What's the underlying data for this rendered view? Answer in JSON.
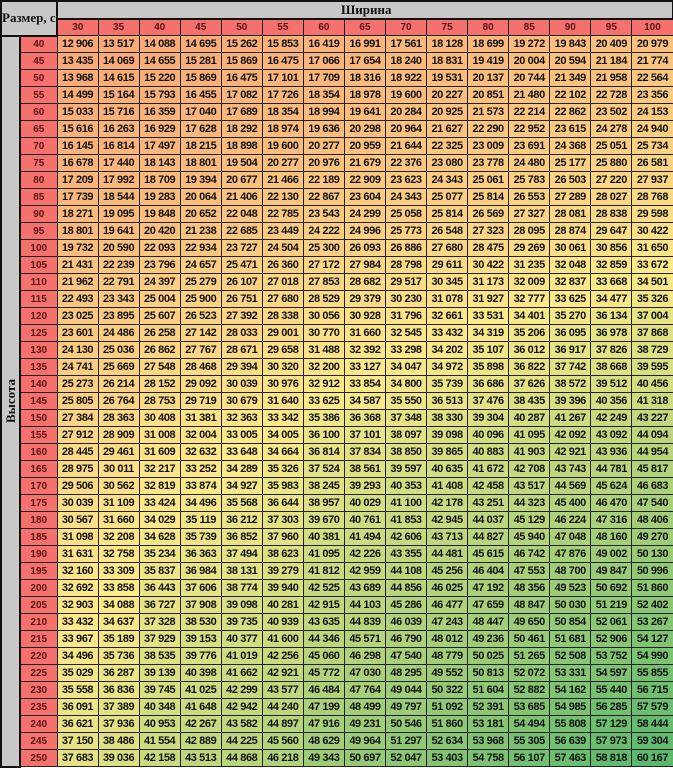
{
  "header": {
    "size_label": "Размер, см",
    "width_label": "Ширина",
    "height_label": "Высота"
  },
  "colors": {
    "header_red": "#f4716e",
    "header_grey": "#c8c8c8",
    "scale_low": "#f9a878",
    "scale_mid": "#fce98a",
    "scale_high": "#5cb86c"
  },
  "columns": [
    "30",
    "35",
    "40",
    "45",
    "50",
    "55",
    "60",
    "65",
    "70",
    "75",
    "80",
    "85",
    "90",
    "95",
    "100"
  ],
  "rows": [
    {
      "label": "40",
      "values": [
        "12 906",
        "13 517",
        "14 088",
        "14 695",
        "15 262",
        "15 853",
        "16 419",
        "16 991",
        "17 561",
        "18 128",
        "18 699",
        "19 272",
        "19 843",
        "20 409",
        "20 979"
      ]
    },
    {
      "label": "45",
      "values": [
        "13 435",
        "14 069",
        "14 655",
        "15 281",
        "15 869",
        "16 475",
        "17 066",
        "17 654",
        "18 240",
        "18 831",
        "19 419",
        "20 004",
        "20 594",
        "21 184",
        "21 774"
      ]
    },
    {
      "label": "50",
      "values": [
        "13 968",
        "14 615",
        "15 220",
        "15 869",
        "16 475",
        "17 101",
        "17 709",
        "18 316",
        "18 922",
        "19 531",
        "20 137",
        "20 744",
        "21 349",
        "21 958",
        "22 564"
      ]
    },
    {
      "label": "55",
      "values": [
        "14 499",
        "15 164",
        "15 793",
        "16 455",
        "17 082",
        "17 726",
        "18 354",
        "18 978",
        "19 600",
        "20 227",
        "20 851",
        "21 480",
        "22 102",
        "22 728",
        "23 356"
      ]
    },
    {
      "label": "60",
      "values": [
        "15 033",
        "15 716",
        "16 359",
        "17 040",
        "17 689",
        "18 354",
        "18 994",
        "19 641",
        "20 284",
        "20 925",
        "21 573",
        "22 214",
        "22 862",
        "23 502",
        "24 153"
      ]
    },
    {
      "label": "65",
      "values": [
        "15 616",
        "16 263",
        "16 929",
        "17 628",
        "18 292",
        "18 974",
        "19 636",
        "20 298",
        "20 964",
        "21 627",
        "22 290",
        "22 952",
        "23 615",
        "24 278",
        "24 940"
      ]
    },
    {
      "label": "70",
      "values": [
        "16 145",
        "16 814",
        "17 497",
        "18 215",
        "18 898",
        "19 600",
        "20 277",
        "20 959",
        "21 644",
        "22 325",
        "23 009",
        "23 691",
        "24 368",
        "25 051",
        "25 734"
      ]
    },
    {
      "label": "75",
      "values": [
        "16 678",
        "17 440",
        "18 143",
        "18 801",
        "19 504",
        "20 277",
        "20 976",
        "21 679",
        "22 376",
        "23 080",
        "23 778",
        "24 480",
        "25 177",
        "25 880",
        "26 581"
      ]
    },
    {
      "label": "80",
      "values": [
        "17 209",
        "17 992",
        "18 709",
        "19 394",
        "20 677",
        "21 466",
        "22 189",
        "22 909",
        "23 623",
        "24 343",
        "25 061",
        "25 783",
        "26 503",
        "27 220",
        "27 937"
      ]
    },
    {
      "label": "85",
      "values": [
        "17 739",
        "18 544",
        "19 283",
        "20 064",
        "21 406",
        "22 130",
        "22 867",
        "23 604",
        "24 343",
        "25 077",
        "25 814",
        "26 553",
        "27 289",
        "28 027",
        "28 768"
      ]
    },
    {
      "label": "90",
      "values": [
        "18 271",
        "19 095",
        "19 848",
        "20 652",
        "22 048",
        "22 785",
        "23 543",
        "24 299",
        "25 058",
        "25 814",
        "26 569",
        "27 327",
        "28 081",
        "28 838",
        "29 598"
      ]
    },
    {
      "label": "95",
      "values": [
        "18 801",
        "19 641",
        "20 420",
        "21 238",
        "22 685",
        "23 449",
        "24 222",
        "24 996",
        "25 773",
        "26 548",
        "27 323",
        "28 095",
        "28 874",
        "29 647",
        "30 422"
      ]
    },
    {
      "label": "100",
      "values": [
        "19 732",
        "20 590",
        "22 093",
        "22 934",
        "23 727",
        "24 504",
        "25 300",
        "26 093",
        "26 886",
        "27 680",
        "28 475",
        "29 269",
        "30 061",
        "30 856",
        "31 650"
      ]
    },
    {
      "label": "105",
      "values": [
        "21 431",
        "22 239",
        "23 796",
        "24 657",
        "25 471",
        "26 360",
        "27 172",
        "27 984",
        "28 798",
        "29 611",
        "30 422",
        "31 235",
        "32 048",
        "32 859",
        "33 672"
      ]
    },
    {
      "label": "110",
      "values": [
        "21 962",
        "22 791",
        "24 397",
        "25 279",
        "26 107",
        "27 018",
        "27 853",
        "28 682",
        "29 517",
        "30 345",
        "31 173",
        "32 009",
        "32 837",
        "33 668",
        "34 501"
      ]
    },
    {
      "label": "115",
      "values": [
        "22 493",
        "23 343",
        "25 004",
        "25 900",
        "26 751",
        "27 680",
        "28 529",
        "29 379",
        "30 230",
        "31 078",
        "31 927",
        "32 777",
        "33 625",
        "34 477",
        "35 326"
      ]
    },
    {
      "label": "120",
      "values": [
        "23 025",
        "23 895",
        "25 607",
        "26 523",
        "27 392",
        "28 338",
        "30 056",
        "30 928",
        "31 796",
        "32 661",
        "33 531",
        "34 401",
        "35 270",
        "36 134",
        "37 004"
      ]
    },
    {
      "label": "125",
      "values": [
        "23 601",
        "24 486",
        "26 258",
        "27 142",
        "28 033",
        "29 001",
        "30 770",
        "31 660",
        "32 545",
        "33 432",
        "34 319",
        "35 206",
        "36 095",
        "36 978",
        "37 868"
      ]
    },
    {
      "label": "130",
      "values": [
        "24 130",
        "25 036",
        "26 862",
        "27 767",
        "28 671",
        "29 658",
        "31 488",
        "32 392",
        "33 298",
        "34 202",
        "35 107",
        "36 012",
        "36 917",
        "37 826",
        "38 729"
      ]
    },
    {
      "label": "135",
      "values": [
        "24 741",
        "25 669",
        "27 548",
        "28 468",
        "29 394",
        "30 320",
        "32 200",
        "33 127",
        "34 047",
        "34 972",
        "35 898",
        "36 822",
        "37 742",
        "38 668",
        "39 595"
      ]
    },
    {
      "label": "140",
      "values": [
        "25 273",
        "26 214",
        "28 152",
        "29 092",
        "30 039",
        "30 976",
        "32 912",
        "33 854",
        "34 800",
        "35 739",
        "36 686",
        "37 626",
        "38 572",
        "39 512",
        "40 456"
      ]
    },
    {
      "label": "145",
      "values": [
        "25 805",
        "26 764",
        "28 753",
        "29 719",
        "30 679",
        "31 640",
        "33 625",
        "34 587",
        "35 550",
        "36 513",
        "37 476",
        "38 435",
        "39 396",
        "40 356",
        "41 318"
      ]
    },
    {
      "label": "150",
      "values": [
        "27 384",
        "28 363",
        "30 408",
        "31 381",
        "32 363",
        "33 342",
        "35 386",
        "36 368",
        "37 348",
        "38 330",
        "39 304",
        "40 287",
        "41 267",
        "42 249",
        "43 227"
      ]
    },
    {
      "label": "155",
      "values": [
        "27 912",
        "28 909",
        "31 008",
        "32 004",
        "33 005",
        "34 005",
        "36 100",
        "37 101",
        "38 097",
        "39 098",
        "40 096",
        "41 095",
        "42 092",
        "43 092",
        "44 094"
      ]
    },
    {
      "label": "160",
      "values": [
        "28 445",
        "29 461",
        "31 609",
        "32 632",
        "33 648",
        "34 664",
        "36 814",
        "37 834",
        "38 850",
        "39 865",
        "40 883",
        "41 903",
        "42 921",
        "43 936",
        "44 954"
      ]
    },
    {
      "label": "165",
      "values": [
        "28 975",
        "30 011",
        "32 217",
        "33 252",
        "34 289",
        "35 326",
        "37 524",
        "38 561",
        "39 597",
        "40 635",
        "41 672",
        "42 708",
        "43 743",
        "44 781",
        "45 817"
      ]
    },
    {
      "label": "170",
      "values": [
        "29 506",
        "30 562",
        "32 819",
        "33 874",
        "34 927",
        "35 983",
        "38 245",
        "39 293",
        "40 353",
        "41 408",
        "42 458",
        "43 517",
        "44 569",
        "45 624",
        "46 683"
      ]
    },
    {
      "label": "175",
      "values": [
        "30 039",
        "31 109",
        "33 424",
        "34 496",
        "35 568",
        "36 644",
        "38 957",
        "40 029",
        "41 100",
        "42 178",
        "43 251",
        "44 323",
        "45 400",
        "46 470",
        "47 540"
      ]
    },
    {
      "label": "180",
      "values": [
        "30 567",
        "31 660",
        "34 029",
        "35 119",
        "36 212",
        "37 303",
        "39 670",
        "40 761",
        "41 853",
        "42 945",
        "44 037",
        "45 129",
        "46 224",
        "47 316",
        "48 406"
      ]
    },
    {
      "label": "185",
      "values": [
        "31 098",
        "32 208",
        "34 628",
        "35 739",
        "36 852",
        "37 960",
        "40 381",
        "41 494",
        "42 606",
        "43 713",
        "44 827",
        "45 940",
        "47 048",
        "48 160",
        "49 270"
      ]
    },
    {
      "label": "190",
      "values": [
        "31 631",
        "32 758",
        "35 234",
        "36 363",
        "37 494",
        "38 623",
        "41 095",
        "42 226",
        "43 355",
        "44 481",
        "45 615",
        "46 742",
        "47 876",
        "49 002",
        "50 130"
      ]
    },
    {
      "label": "195",
      "values": [
        "32 160",
        "33 309",
        "35 837",
        "36 984",
        "38 131",
        "39 279",
        "41 812",
        "42 959",
        "44 108",
        "45 256",
        "46 404",
        "47 553",
        "48 700",
        "49 847",
        "50 996"
      ]
    },
    {
      "label": "200",
      "values": [
        "32 692",
        "33 858",
        "36 443",
        "37 606",
        "38 774",
        "39 940",
        "42 525",
        "43 689",
        "44 856",
        "46 025",
        "47 192",
        "48 356",
        "49 523",
        "50 692",
        "51 860"
      ]
    },
    {
      "label": "205",
      "values": [
        "32 903",
        "34 088",
        "36 727",
        "37 908",
        "39 098",
        "40 281",
        "42 915",
        "44 103",
        "45 286",
        "46 477",
        "47 659",
        "48 847",
        "50 030",
        "51 219",
        "52 402"
      ]
    },
    {
      "label": "210",
      "values": [
        "33 432",
        "34 637",
        "37 328",
        "38 530",
        "39 735",
        "40 939",
        "43 635",
        "44 839",
        "46 039",
        "47 243",
        "48 447",
        "49 650",
        "50 854",
        "52 061",
        "53 267"
      ]
    },
    {
      "label": "215",
      "values": [
        "33 967",
        "35 189",
        "37 929",
        "39 153",
        "40 377",
        "41 600",
        "44 346",
        "45 571",
        "46 790",
        "48 012",
        "49 236",
        "50 461",
        "51 681",
        "52 906",
        "54 127"
      ]
    },
    {
      "label": "220",
      "values": [
        "34 496",
        "35 736",
        "38 535",
        "39 776",
        "41 019",
        "42 256",
        "45 060",
        "46 298",
        "47 540",
        "48 779",
        "50 025",
        "51 265",
        "52 508",
        "53 752",
        "54 990"
      ]
    },
    {
      "label": "225",
      "values": [
        "35 029",
        "36 287",
        "39 139",
        "40 398",
        "41 662",
        "42 921",
        "45 772",
        "47 030",
        "48 295",
        "49 552",
        "50 813",
        "52 072",
        "53 331",
        "54 597",
        "55 855"
      ]
    },
    {
      "label": "230",
      "values": [
        "35 558",
        "36 836",
        "39 745",
        "41 025",
        "42 299",
        "43 577",
        "46 484",
        "47 764",
        "49 044",
        "50 322",
        "51 604",
        "52 882",
        "54 162",
        "55 440",
        "56 715"
      ]
    },
    {
      "label": "235",
      "values": [
        "36 091",
        "37 389",
        "40 348",
        "41 648",
        "42 942",
        "44 240",
        "47 199",
        "48 499",
        "49 797",
        "51 092",
        "52 391",
        "53 685",
        "54 985",
        "56 285",
        "57 579"
      ]
    },
    {
      "label": "240",
      "values": [
        "36 621",
        "37 936",
        "40 953",
        "42 267",
        "43 582",
        "44 897",
        "47 916",
        "49 231",
        "50 546",
        "51 860",
        "53 181",
        "54 494",
        "55 808",
        "57 129",
        "58 444"
      ]
    },
    {
      "label": "245",
      "values": [
        "37 150",
        "38 486",
        "41 554",
        "42 889",
        "44 225",
        "45 560",
        "48 629",
        "49 964",
        "51 297",
        "52 634",
        "53 968",
        "55 305",
        "56 639",
        "57 973",
        "59 304"
      ]
    },
    {
      "label": "250",
      "values": [
        "37 683",
        "39 036",
        "42 158",
        "43 513",
        "44 868",
        "46 218",
        "49 343",
        "50 697",
        "52 047",
        "53 403",
        "54 758",
        "56 107",
        "57 463",
        "58 818",
        "60 167"
      ]
    }
  ]
}
